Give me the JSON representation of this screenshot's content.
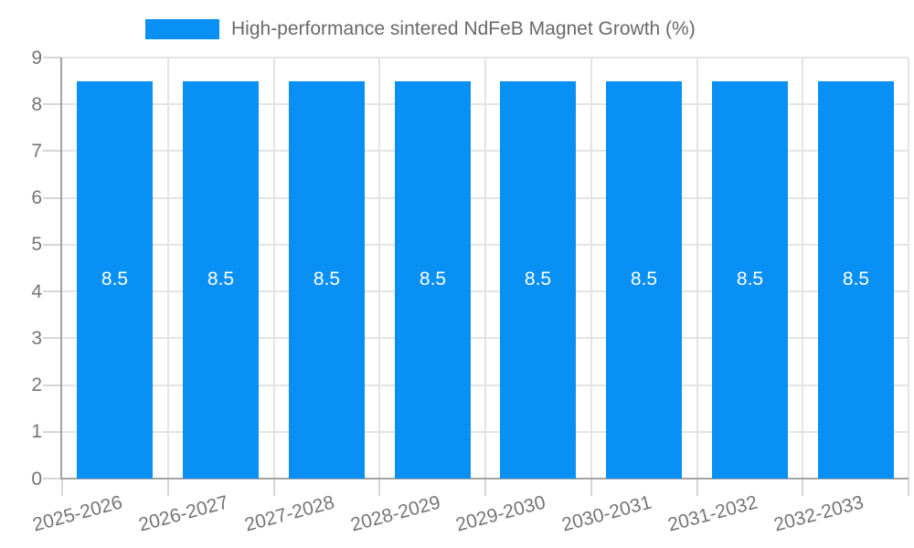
{
  "chart_data": {
    "type": "bar",
    "title": "High-performance sintered NdFeB Magnet Growth (%)",
    "xlabel": "",
    "ylabel": "",
    "categories": [
      "2025-2026",
      "2026-2027",
      "2027-2028",
      "2028-2029",
      "2029-2030",
      "2030-2031",
      "2031-2032",
      "2032-2033"
    ],
    "series": [
      {
        "name": "High-performance sintered NdFeB Magnet Growth (%)",
        "values": [
          8.5,
          8.5,
          8.5,
          8.5,
          8.5,
          8.5,
          8.5,
          8.5
        ],
        "color": "#0890f4"
      }
    ],
    "data_labels": [
      "8.5",
      "8.5",
      "8.5",
      "8.5",
      "8.5",
      "8.5",
      "8.5",
      "8.5"
    ],
    "ylim": [
      0,
      9
    ],
    "y_ticks": [
      0,
      1,
      2,
      3,
      4,
      5,
      6,
      7,
      8,
      9
    ],
    "x_tick_rotation_deg": -15,
    "grid": true,
    "legend": {
      "position": "top-center",
      "entries": [
        {
          "label": "High-performance sintered NdFeB Magnet Growth (%)",
          "color": "#0890f4"
        }
      ]
    },
    "colors": {
      "bar": "#0890f4",
      "background": "#ffffff",
      "grid": "#e4e4e4",
      "axis": "#a3a3a3",
      "tick": "#d6d6d6",
      "tick_label": "#757575",
      "legend_text": "#696969",
      "value_label": "#ffffff"
    }
  }
}
